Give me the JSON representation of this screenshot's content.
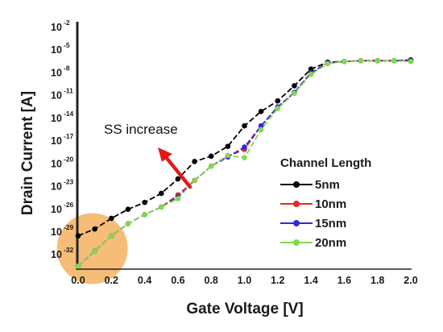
{
  "chart_data": {
    "type": "line",
    "title": "",
    "xlabel": "Gate Voltage [V]",
    "ylabel": "Drain Current [A]",
    "xlim": [
      0,
      2.0
    ],
    "ylim_exponent": [
      -34,
      -2
    ],
    "y_scale": "log",
    "x_ticks": [
      "0.0",
      "0.2",
      "0.4",
      "0.6",
      "0.8",
      "1.0",
      "1.2",
      "1.4",
      "1.6",
      "1.8",
      "2.0"
    ],
    "y_ticks": [
      {
        "base": "10",
        "exp": "-2"
      },
      {
        "base": "10",
        "exp": "-5"
      },
      {
        "base": "10",
        "exp": "-8"
      },
      {
        "base": "10",
        "exp": "-11"
      },
      {
        "base": "10",
        "exp": "-14"
      },
      {
        "base": "10",
        "exp": "-17"
      },
      {
        "base": "10",
        "exp": "-20"
      },
      {
        "base": "10",
        "exp": "-23"
      },
      {
        "base": "10",
        "exp": "-26"
      },
      {
        "base": "10",
        "exp": "-29"
      },
      {
        "base": "10",
        "exp": "-32"
      }
    ],
    "x": [
      0.0,
      0.1,
      0.2,
      0.3,
      0.4,
      0.5,
      0.6,
      0.7,
      0.8,
      0.9,
      1.0,
      1.1,
      1.2,
      1.3,
      1.4,
      1.5,
      1.6,
      1.7,
      1.8,
      1.9,
      2.0
    ],
    "series": [
      {
        "name": "5nm",
        "color": "#000000",
        "y_log10": [
          -29.6,
          -28.7,
          -27.3,
          -26.1,
          -25.2,
          -24.0,
          -22.1,
          -19.8,
          -19.1,
          -17.8,
          -15.1,
          -13.2,
          -11.8,
          -9.8,
          -7.6,
          -6.7,
          -6.6,
          -6.5,
          -6.5,
          -6.5,
          -6.4
        ]
      },
      {
        "name": "10nm",
        "color": "#e8262b",
        "y_log10": [
          -33.6,
          -31.6,
          -29.6,
          -28.0,
          -26.8,
          -25.8,
          -24.2,
          -22.3,
          -20.4,
          -19.1,
          -18.2,
          -15.1,
          -12.6,
          -10.7,
          -8.1,
          -6.8,
          -6.6,
          -6.5,
          -6.5,
          -6.5,
          -6.5
        ]
      },
      {
        "name": "15nm",
        "color": "#2f2bd6",
        "y_log10": [
          -33.6,
          -31.6,
          -29.6,
          -28.0,
          -26.8,
          -25.8,
          -24.5,
          -22.3,
          -20.4,
          -19.2,
          -17.9,
          -15.1,
          -12.6,
          -10.7,
          -8.1,
          -6.8,
          -6.6,
          -6.5,
          -6.5,
          -6.5,
          -6.5
        ]
      },
      {
        "name": "20nm",
        "color": "#7fd94e",
        "y_log10": [
          -33.6,
          -31.6,
          -29.6,
          -28.0,
          -26.8,
          -25.8,
          -24.7,
          -22.3,
          -20.4,
          -19.0,
          -19.3,
          -15.6,
          -12.8,
          -10.8,
          -8.3,
          -6.9,
          -6.6,
          -6.5,
          -6.5,
          -6.5,
          -6.6
        ]
      }
    ],
    "legend": {
      "title": "Channel Length",
      "position": "right-middle"
    },
    "annotations": [
      {
        "text": "SS increase"
      }
    ],
    "highlight": {
      "shape": "circle",
      "color": "#f5b971",
      "x": 0.1,
      "y_log10": -31.5
    }
  }
}
